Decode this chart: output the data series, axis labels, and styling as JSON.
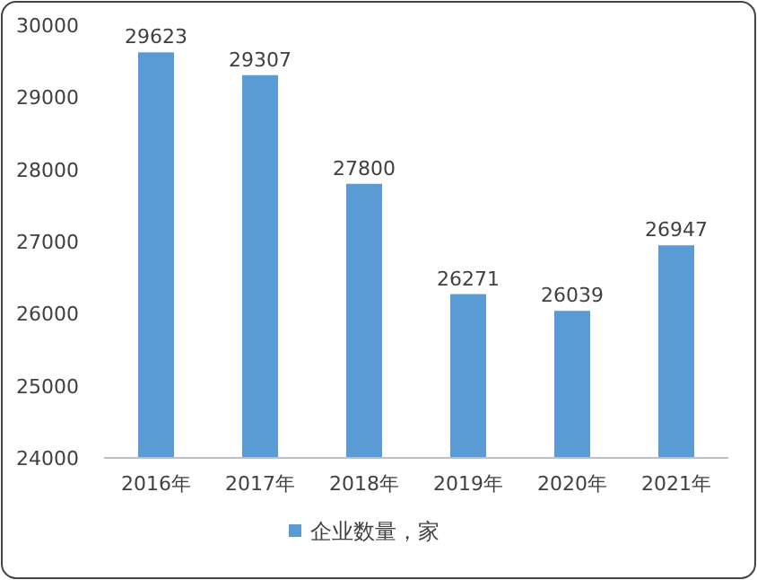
{
  "chart_data": {
    "type": "bar",
    "categories": [
      "2016年",
      "2017年",
      "2018年",
      "2019年",
      "2020年",
      "2021年"
    ],
    "series": [
      {
        "name": "企业数量，家",
        "color": "#5b9bd5",
        "values": [
          29623,
          29307,
          27800,
          26271,
          26039,
          26947
        ]
      }
    ],
    "ylim": [
      24000,
      30000
    ],
    "yticks": [
      24000,
      25000,
      26000,
      27000,
      28000,
      29000,
      30000
    ],
    "data_labels": true,
    "legend": "bottom",
    "grid": false
  }
}
